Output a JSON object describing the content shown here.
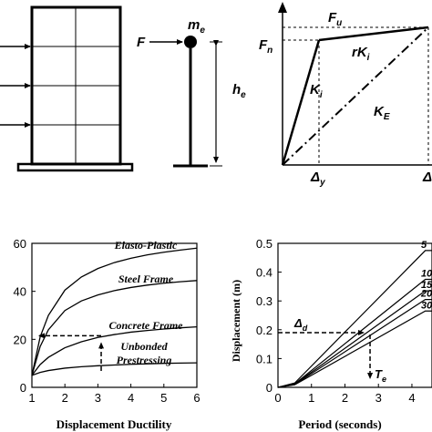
{
  "panel_a": {
    "force_label": "F",
    "mass_label": "m",
    "mass_subscript": "e",
    "height_label": "h",
    "height_subscript": "e"
  },
  "panel_b": {
    "fu_label": "F",
    "fu_subscript": "u",
    "fn_label": "F",
    "fn_subscript": "n",
    "rki_label": "rK",
    "rki_subscript": "i",
    "ki_label": "K",
    "ki_subscript": "i",
    "ke_label": "K",
    "ke_subscript": "E",
    "dy_label": "Δ",
    "dy_subscript": "y",
    "du_label": "Δ"
  },
  "chart_data": [
    {
      "type": "line",
      "xlabel": "Displacement Ductility",
      "ylabel": "",
      "xlim": [
        1,
        6
      ],
      "ylim": [
        0,
        60
      ],
      "x_ticks": [
        "1",
        "2",
        "3",
        "4",
        "5",
        "6"
      ],
      "y_ticks": [
        "0",
        "20",
        "40",
        "60"
      ],
      "grid": false,
      "series": [
        {
          "name": "Elasto-Plastic",
          "x": [
            1,
            1.25,
            1.5,
            2,
            2.5,
            3,
            3.5,
            4,
            4.5,
            5,
            5.5,
            6
          ],
          "values": [
            5,
            21,
            30,
            40.5,
            46,
            49.5,
            52,
            53.8,
            55.2,
            56.3,
            57.2,
            58
          ]
        },
        {
          "name": "Steel Frame",
          "x": [
            1,
            1.25,
            1.5,
            2,
            2.5,
            3,
            3.5,
            4,
            4.5,
            5,
            5.5,
            6
          ],
          "values": [
            5,
            17,
            24,
            32,
            36,
            38.5,
            40.3,
            41.6,
            42.6,
            43.4,
            44,
            44.5
          ]
        },
        {
          "name": "Concrete Frame",
          "x": [
            1,
            1.25,
            1.5,
            2,
            2.5,
            3,
            3.5,
            4,
            4.5,
            5,
            5.5,
            6
          ],
          "values": [
            5,
            9.5,
            12.5,
            16.5,
            19,
            20.8,
            22,
            23,
            23.7,
            24.3,
            24.8,
            25.2
          ]
        },
        {
          "name": "Unbonded Prestressing",
          "x": [
            1,
            1.25,
            1.5,
            2,
            2.5,
            3,
            3.5,
            4,
            4.5,
            5,
            5.5,
            6
          ],
          "values": [
            5,
            6.2,
            7,
            8,
            8.6,
            9,
            9.3,
            9.6,
            9.8,
            10,
            10.1,
            10.2
          ]
        }
      ],
      "annotation": {
        "ductility": 3.1,
        "value": 21.5
      }
    },
    {
      "type": "line",
      "xlabel": "Period (seconds)",
      "ylabel": "Displacement (m)",
      "xlim": [
        0,
        4.6
      ],
      "ylim": [
        0,
        0.5
      ],
      "x_ticks": [
        "0",
        "1",
        "2",
        "3",
        "4"
      ],
      "y_ticks": [
        "0",
        "0.1",
        "0.2",
        "0.3",
        "0.4",
        "0.5"
      ],
      "grid": false,
      "series": [
        {
          "name": "5",
          "x": [
            0,
            0.5,
            4.4
          ],
          "values": [
            0,
            0.015,
            0.475
          ]
        },
        {
          "name": "10",
          "x": [
            0,
            0.5,
            4.4
          ],
          "values": [
            0,
            0.012,
            0.375
          ]
        },
        {
          "name": "15",
          "x": [
            0,
            0.5,
            4.4
          ],
          "values": [
            0,
            0.011,
            0.335
          ]
        },
        {
          "name": "20",
          "x": [
            0,
            0.5,
            4.4
          ],
          "values": [
            0,
            0.01,
            0.305
          ]
        },
        {
          "name": "30",
          "x": [
            0,
            0.5,
            4.4
          ],
          "values": [
            0,
            0.009,
            0.265
          ]
        }
      ],
      "annotation": {
        "delta_label": "Δ",
        "delta_subscript": "d",
        "te_label": "T",
        "te_subscript": "e",
        "period": 2.75,
        "displacement": 0.19
      }
    }
  ]
}
